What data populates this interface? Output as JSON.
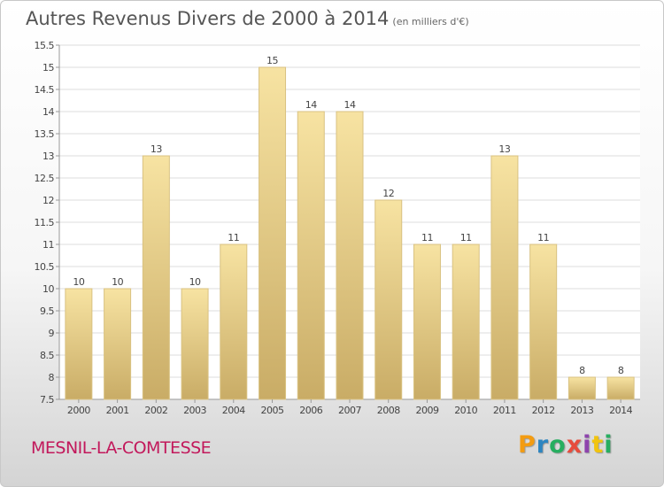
{
  "title": "Autres Revenus Divers de 2000 à 2014",
  "subtitle": "(en milliers d'€)",
  "commune": "MESNIL-LA-COMTESSE",
  "logo": {
    "letters": [
      "P",
      "r",
      "o",
      "x",
      "i",
      "t",
      "i"
    ],
    "colors": [
      "#f39c12",
      "#2e86c1",
      "#27ae60",
      "#e74c3c",
      "#8e44ad",
      "#f1c40f",
      "#27ae60"
    ]
  },
  "colors": {
    "bar_light": "#f7e3a2",
    "bar_dark": "#c9ac66",
    "bar_stroke": "#d9c282",
    "grid": "#dcdcdc",
    "axis": "#999999",
    "text": "#444444"
  },
  "chart_data": {
    "type": "bar",
    "categories": [
      "2000",
      "2001",
      "2002",
      "2003",
      "2004",
      "2005",
      "2006",
      "2007",
      "2008",
      "2009",
      "2010",
      "2011",
      "2012",
      "2013",
      "2014"
    ],
    "values": [
      10,
      10,
      13,
      10,
      11,
      15,
      14,
      14,
      12,
      11,
      11,
      13,
      11,
      8,
      8
    ],
    "data_labels": [
      "10",
      "10",
      "13",
      "10",
      "11",
      "15",
      "14",
      "14",
      "12",
      "11",
      "11",
      "13",
      "11",
      "8",
      "8"
    ],
    "ylim": [
      7.5,
      15.5
    ],
    "yticks": [
      7.5,
      8,
      8.5,
      9,
      9.5,
      10,
      10.5,
      11,
      11.5,
      12,
      12.5,
      13,
      13.5,
      14,
      14.5,
      15,
      15.5
    ],
    "ytick_labels": [
      "7.5",
      "8",
      "8.5",
      "9",
      "9.5",
      "10",
      "10.5",
      "11",
      "11.5",
      "12",
      "12.5",
      "13",
      "13.5",
      "14",
      "14.5",
      "15",
      "15.5"
    ],
    "grid": true,
    "legend": "none",
    "xlabel": "",
    "ylabel": ""
  }
}
